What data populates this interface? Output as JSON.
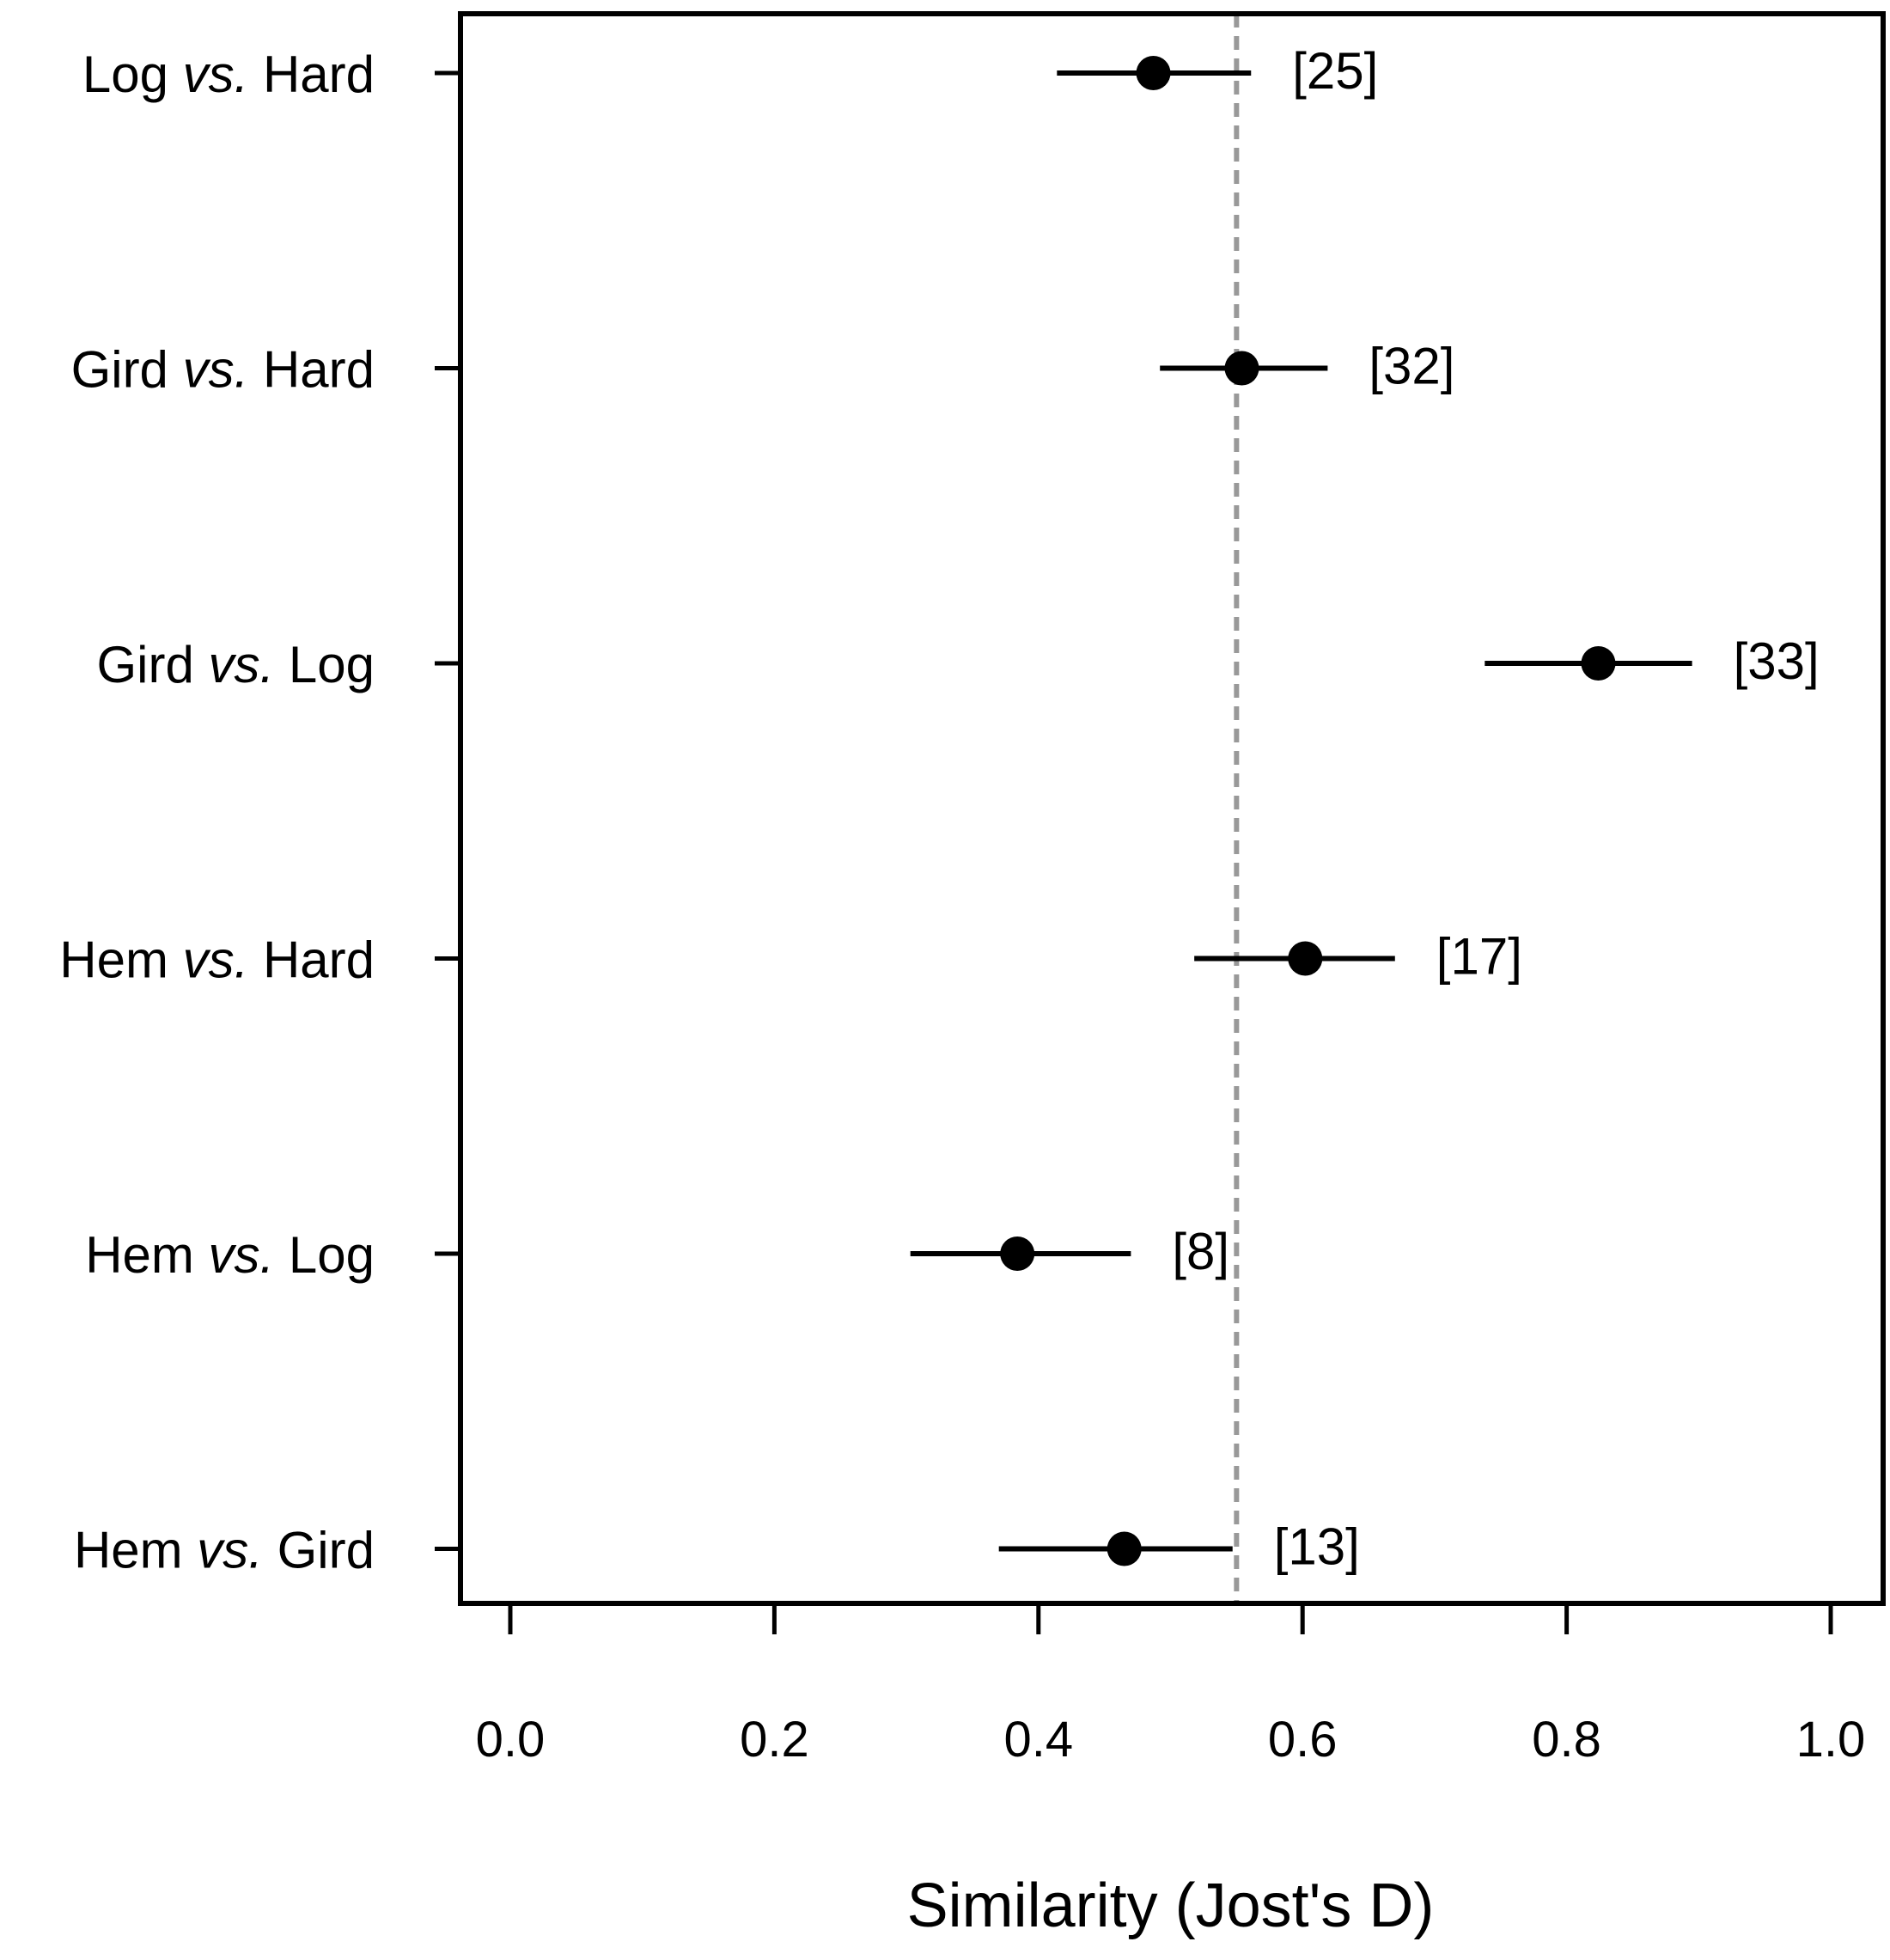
{
  "chart_data": {
    "type": "scatter",
    "subtype": "dot-plot-with-intervals",
    "title": "",
    "xlabel": "Similarity (Jost's D)",
    "ylabel": "",
    "xlim": [
      -0.04,
      1.04
    ],
    "xticks": [
      0.0,
      0.2,
      0.4,
      0.6,
      0.8,
      1.0
    ],
    "xtick_labels": [
      "0.0",
      "0.2",
      "0.4",
      "0.6",
      "0.8",
      "1.0"
    ],
    "reference_line": {
      "x": 0.55,
      "style": "dashed",
      "color": "#999999"
    },
    "point_color": "#000000",
    "grid": false,
    "legend": "none",
    "categories": [
      {
        "left": "Log",
        "conj": "vs.",
        "right": "Hard"
      },
      {
        "left": "Gird",
        "conj": "vs.",
        "right": "Hard"
      },
      {
        "left": "Gird",
        "conj": "vs.",
        "right": "Log"
      },
      {
        "left": "Hem",
        "conj": "vs.",
        "right": "Hard"
      },
      {
        "left": "Hem",
        "conj": "vs.",
        "right": "Log"
      },
      {
        "left": "Hem",
        "conj": "vs.",
        "right": "Gird"
      }
    ],
    "estimates": [
      0.487,
      0.554,
      0.824,
      0.602,
      0.384,
      0.465
    ],
    "lower": [
      0.414,
      0.492,
      0.738,
      0.518,
      0.303,
      0.37
    ],
    "upper": [
      0.561,
      0.619,
      0.895,
      0.67,
      0.47,
      0.547
    ],
    "n_labels": [
      "[25]",
      "[32]",
      "[33]",
      "[17]",
      "[8]",
      "[13]"
    ]
  }
}
